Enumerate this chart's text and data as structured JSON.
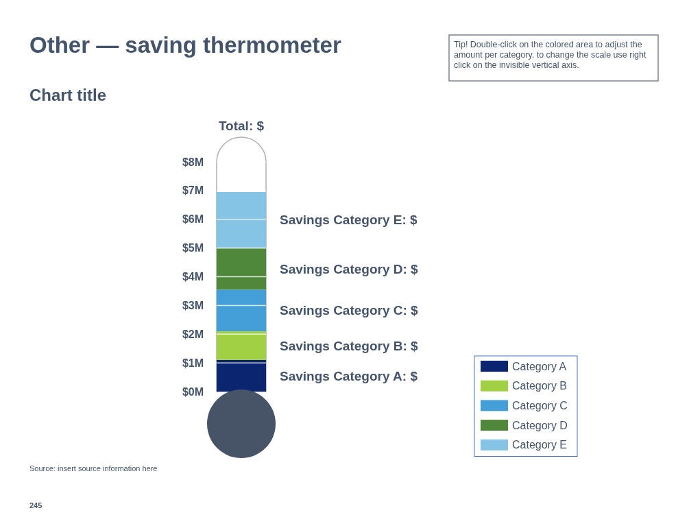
{
  "chart_data": {
    "type": "bar",
    "stacked": true,
    "title": "Other — saving thermometer",
    "subtitle": "Chart title",
    "categories": [
      null
    ],
    "series": [
      {
        "name": "Category A",
        "color": "#0b2570",
        "values": [
          1.1
        ]
      },
      {
        "name": "Category B",
        "color": "#a2d044",
        "values": [
          1.0
        ]
      },
      {
        "name": "Category C",
        "color": "#449fd9",
        "values": [
          1.45
        ]
      },
      {
        "name": "Category D",
        "color": "#4f873b",
        "values": [
          1.45
        ]
      },
      {
        "name": "Category E",
        "color": "#85c4e4",
        "values": [
          1.95
        ]
      }
    ],
    "ylim": [
      0,
      8
    ],
    "yticks": [
      {
        "value": 0,
        "label": "$0M"
      },
      {
        "value": 1,
        "label": "$1M"
      },
      {
        "value": 2,
        "label": "$2M"
      },
      {
        "value": 3,
        "label": "$3M"
      },
      {
        "value": 4,
        "label": "$4M"
      },
      {
        "value": 5,
        "label": "$5M"
      },
      {
        "value": 6,
        "label": "$6M"
      },
      {
        "value": 7,
        "label": "$7M"
      },
      {
        "value": 8,
        "label": "$8M"
      }
    ],
    "grid": "y",
    "legend": "bottom right",
    "annotations": [
      "Savings Category A: $",
      "Savings Category B: $",
      "Savings Category C: $",
      "Savings Category D: $",
      "Savings Category E: $",
      "Total: $",
      "Tip! Double-click on the colored area to adjust the amount per category, to change the scale use right click on the invisible vertical axis.",
      "Source: insert source information here",
      "245"
    ]
  }
}
